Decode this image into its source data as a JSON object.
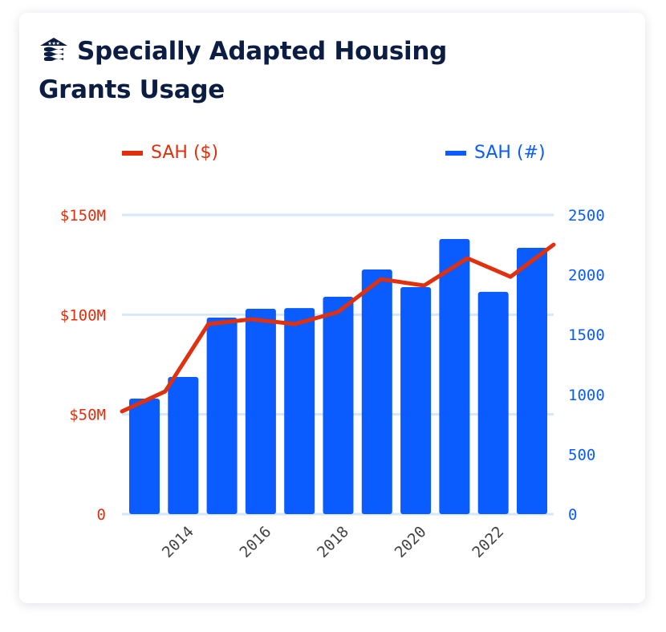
{
  "card": {
    "title": "Specially Adapted Housing Grants Usage",
    "logo_icon": "house-with-stars-and-waves-icon"
  },
  "colors": {
    "line": "#e0300e",
    "bar": "#0a5cff",
    "grid": "#d6e6fb",
    "title": "#0b1d42",
    "xtick": "#444444"
  },
  "chart_data": {
    "type": "bar+line",
    "categories": [
      "2013",
      "2014",
      "2015",
      "2016",
      "2017",
      "2018",
      "2019",
      "2020",
      "2021",
      "2022",
      "2023"
    ],
    "xtick_labels": [
      "2014",
      "2016",
      "2018",
      "2020",
      "2022"
    ],
    "series": [
      {
        "name": "SAH ($)",
        "type": "line",
        "axis": "left",
        "values": [
          51.5,
          61.5,
          95.3,
          97.7,
          95.3,
          101.3,
          117.8,
          114.6,
          128.3,
          119.0,
          135.1
        ]
      },
      {
        "name": "SAH (#)",
        "type": "bar",
        "axis": "right",
        "values": [
          965,
          1146,
          1642,
          1716,
          1722,
          1816,
          2044,
          1897,
          2299,
          1857,
          2225
        ]
      }
    ],
    "left_axis": {
      "ylim": [
        0,
        150
      ],
      "ticks": [
        0,
        50,
        100,
        150
      ],
      "tick_labels": [
        "0",
        "$50M",
        "$100M",
        "$150M"
      ]
    },
    "right_axis": {
      "ylim": [
        0,
        2500
      ],
      "ticks": [
        0,
        500,
        1000,
        1500,
        2000,
        2500
      ],
      "tick_labels": [
        "0",
        "500",
        "1000",
        "1500",
        "2000",
        "2500"
      ]
    },
    "grid": true,
    "legend_placement": "top"
  }
}
